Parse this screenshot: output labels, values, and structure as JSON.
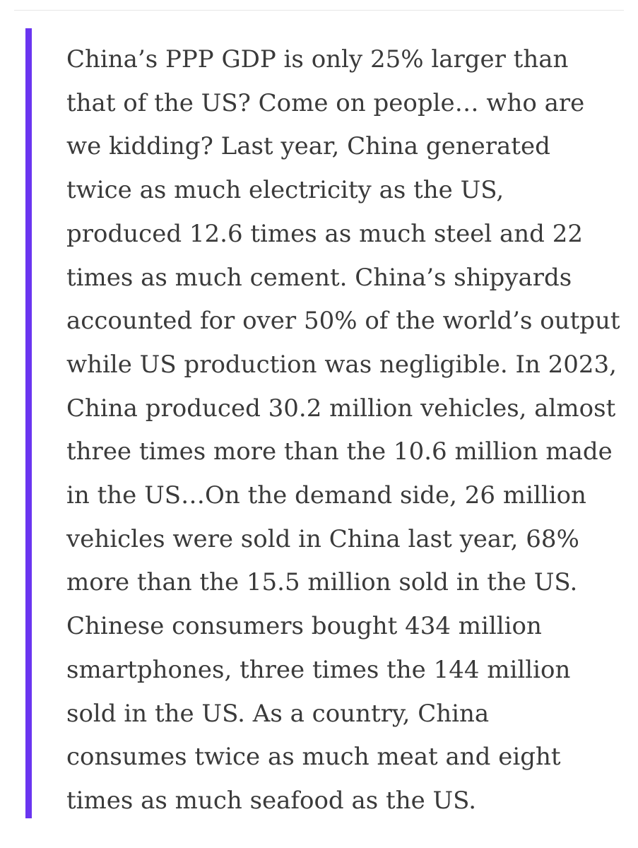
{
  "theme": {
    "quote_bar_color": "#6a35f0",
    "text_color": "#3a3a3a",
    "background": "#ffffff"
  },
  "quote": {
    "lines": [
      "China’s PPP GDP is only 25% larger than",
      "that of the US? Come on people… who are",
      "we kidding? Last year, China generated",
      "twice as much electricity as the US,",
      "produced 12.6 times as much steel and 22",
      "times as much cement. China’s shipyards",
      "accounted for over 50% of the world’s output",
      "while US production was negligible. In 2023,",
      "China produced 30.2 million vehicles, almost",
      "three times more than the 10.6 million made",
      "in the US…On the demand side, 26 million",
      "vehicles were sold in China last year, 68%",
      "more than the 15.5 million sold in the US.",
      "Chinese consumers bought 434 million",
      "smartphones, three times the 144 million",
      "sold in the US. As a country, China",
      "consumes twice as much meat and eight",
      "times as much seafood as the US."
    ]
  }
}
